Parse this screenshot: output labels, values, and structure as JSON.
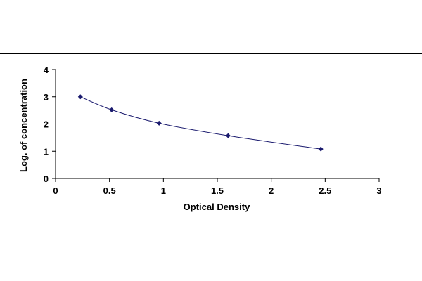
{
  "chart_data": {
    "type": "scatter",
    "title": "",
    "xlabel": "Optical Density",
    "ylabel": "Log. of concentration",
    "xlim": [
      0,
      3
    ],
    "ylim": [
      0,
      4
    ],
    "xticks": [
      "0",
      "0.5",
      "1",
      "1.5",
      "2",
      "2.5",
      "3"
    ],
    "yticks": [
      "0",
      "1",
      "2",
      "3",
      "4"
    ],
    "grid": false,
    "legend": "none",
    "marker_color": "#1a1a6e",
    "line_color": "#1a1a6e",
    "series": [
      {
        "x": [
          0.23,
          0.52,
          0.96,
          1.6,
          2.46
        ],
        "y": [
          3.0,
          2.52,
          2.03,
          1.57,
          1.08
        ]
      }
    ]
  }
}
